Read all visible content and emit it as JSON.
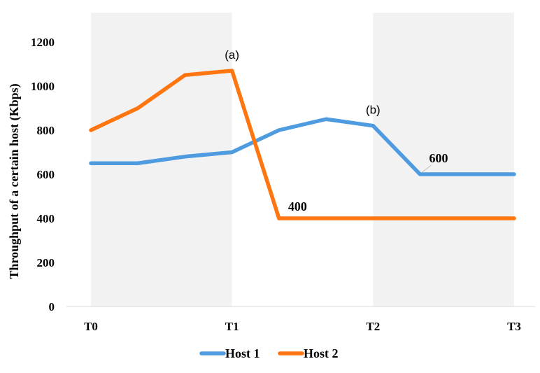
{
  "chart_data": {
    "type": "line",
    "ylabel": "Throughput of a certain host  (Kbps)",
    "xlabel": "",
    "title": "",
    "ylim": [
      0,
      1200
    ],
    "yticks": [
      0,
      200,
      400,
      600,
      800,
      1000,
      1200
    ],
    "x": [
      0,
      0.333,
      0.667,
      1,
      1.333,
      1.667,
      2,
      2.333,
      3
    ],
    "xticks": [
      {
        "value": 0,
        "label": "T0"
      },
      {
        "value": 1,
        "label": "T1"
      },
      {
        "value": 2,
        "label": "T2"
      },
      {
        "value": 3,
        "label": "T3"
      }
    ],
    "shaded_regions": [
      [
        0,
        1
      ],
      [
        2,
        3
      ]
    ],
    "shade_color": "#f2f2f2",
    "grid": false,
    "legend_position": "bottom",
    "series": [
      {
        "name": "Host 1",
        "color": "#4e9be0",
        "values": [
          650,
          650,
          680,
          700,
          800,
          850,
          820,
          600,
          600
        ]
      },
      {
        "name": "Host 2",
        "color": "#ff7510",
        "values": [
          800,
          900,
          1050,
          1070,
          400,
          400,
          400,
          400,
          400
        ]
      }
    ],
    "annotations": [
      {
        "text": "(a)",
        "x": 1,
        "y": 1070,
        "style": "sans"
      },
      {
        "text": "(b)",
        "x": 2,
        "y": 820,
        "style": "sans"
      },
      {
        "text": "400",
        "x": 1.333,
        "y": 400,
        "style": "serif"
      },
      {
        "text": "600",
        "x": 2.333,
        "y": 600,
        "style": "serif"
      }
    ]
  }
}
